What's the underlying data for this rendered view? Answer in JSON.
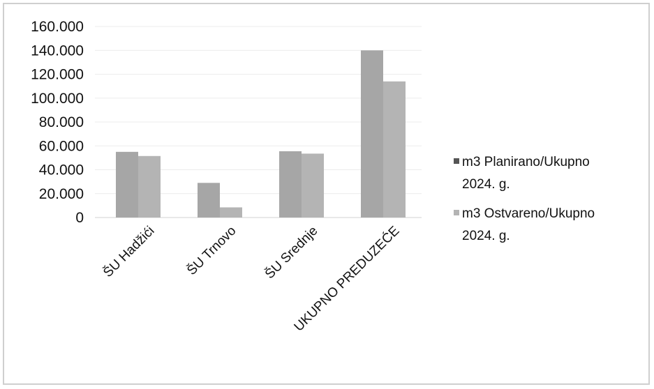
{
  "chart_data": {
    "type": "bar",
    "categories": [
      "ŠU Hadžići",
      "ŠU Trnovo",
      "ŠU Srednje",
      "UKUPNO PREDUZEĆE"
    ],
    "series": [
      {
        "name": "m3 Planirano/Ukupno 2024. g.",
        "color": "#a6a6a6",
        "values": [
          55000,
          29000,
          55500,
          140000
        ]
      },
      {
        "name": "m3 Ostvareno/Ukupno 2024. g.",
        "color": "#b4b4b4",
        "values": [
          51500,
          8500,
          53500,
          114000
        ]
      }
    ],
    "ylim": [
      0,
      160000
    ],
    "yticks": [
      {
        "value": 0,
        "label": "0"
      },
      {
        "value": 20000,
        "label": "20.000"
      },
      {
        "value": 40000,
        "label": "40.000"
      },
      {
        "value": 60000,
        "label": "60.000"
      },
      {
        "value": 80000,
        "label": "80.000"
      },
      {
        "value": 100000,
        "label": "100.000"
      },
      {
        "value": 120000,
        "label": "120.000"
      },
      {
        "value": 140000,
        "label": "140.000"
      },
      {
        "value": 160000,
        "label": "160.000"
      }
    ],
    "grid": true,
    "legend_position": "right",
    "legend": [
      {
        "line1": "m3 Planirano/Ukupno",
        "line2": "2024. g.",
        "color": "#555555"
      },
      {
        "line1": "m3 Ostvareno/Ukupno",
        "line2": "2024. g.",
        "color": "#b4b4b4"
      }
    ]
  }
}
